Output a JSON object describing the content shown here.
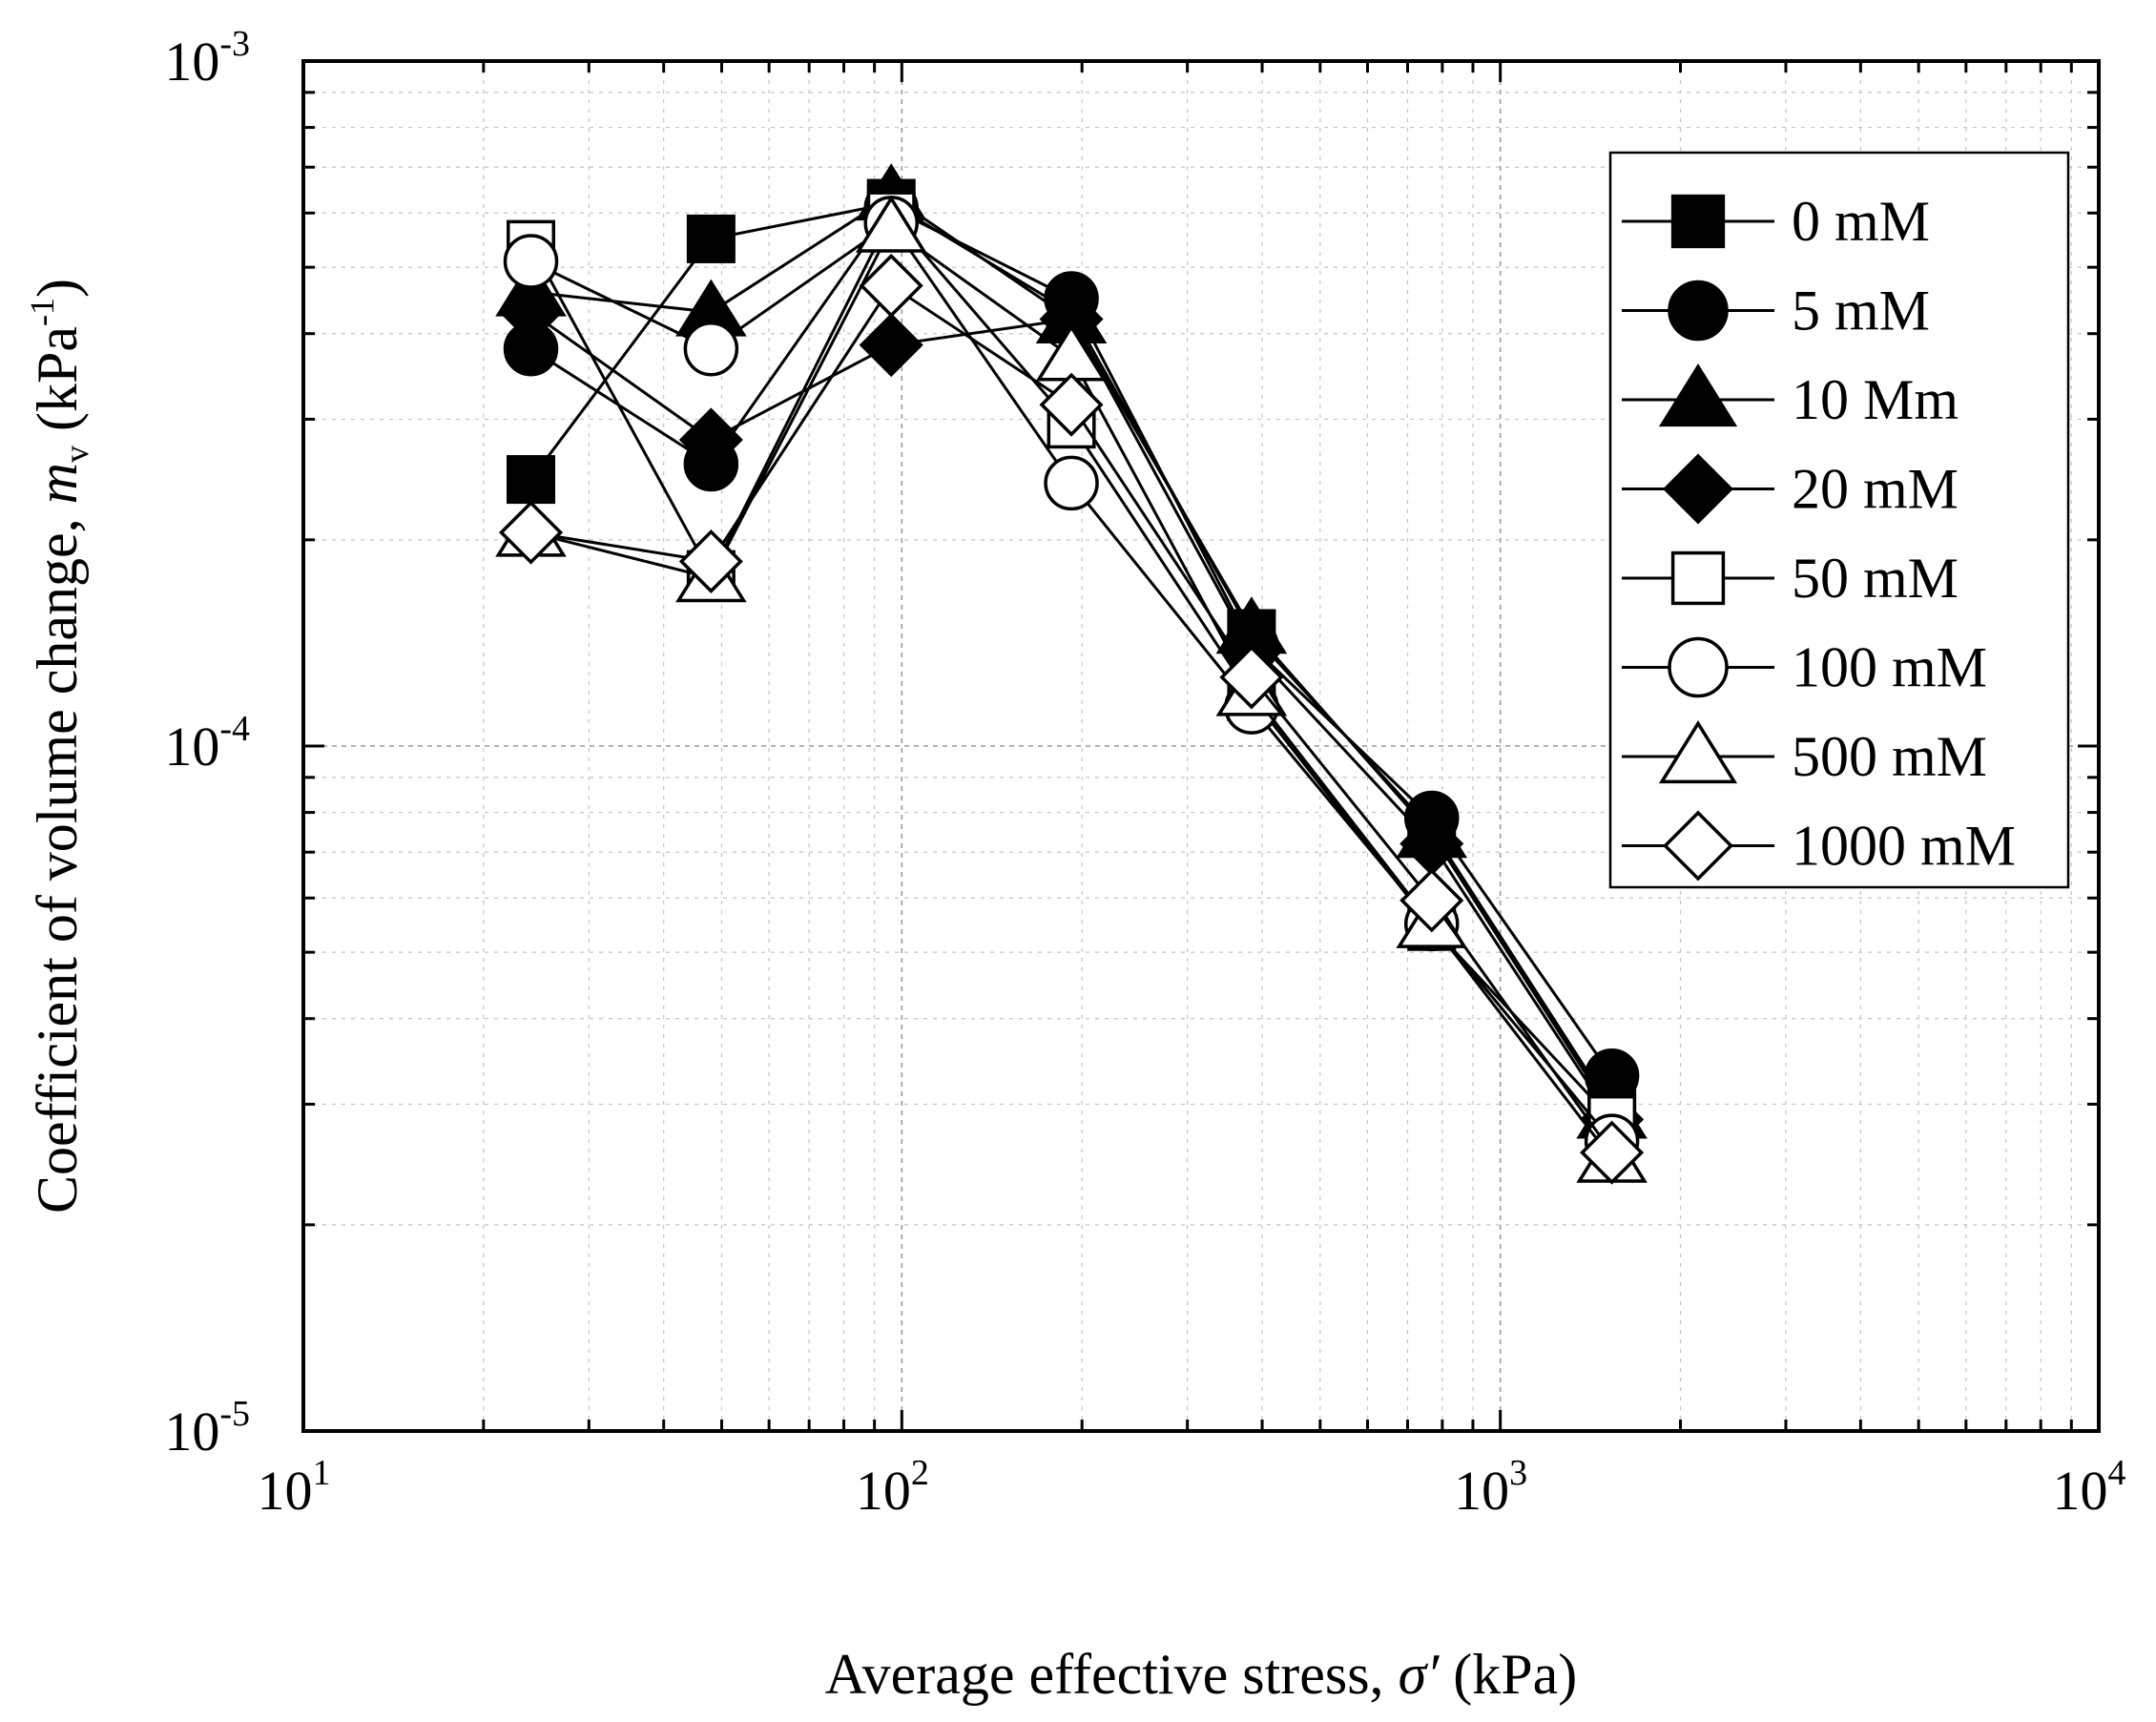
{
  "chart_data": {
    "type": "line",
    "xscale": "log",
    "yscale": "log",
    "xlim": [
      10,
      10000
    ],
    "ylim": [
      1e-05,
      0.001
    ],
    "xlabel": {
      "prefix": "Average effective stress, ",
      "symbol": "σ′",
      "suffix": " (kPa)"
    },
    "ylabel": {
      "prefix": "Coefficient of volume change, ",
      "symbol": "m",
      "subscript": "v",
      "unit_open": " (kPa",
      "unit_sup": "-1",
      "unit_close": ")"
    },
    "x_ticks": [
      {
        "base": "10",
        "exp": "1"
      },
      {
        "base": "10",
        "exp": "2"
      },
      {
        "base": "10",
        "exp": "3"
      },
      {
        "base": "10",
        "exp": "4"
      }
    ],
    "y_ticks": [
      {
        "base": "10",
        "exp": "-5"
      },
      {
        "base": "10",
        "exp": "-4"
      },
      {
        "base": "10",
        "exp": "-3"
      }
    ],
    "grid": true,
    "legend_position": "top-right",
    "x": [
      24,
      48,
      96,
      192,
      384,
      768,
      1536
    ],
    "series": [
      {
        "name": "0 mM",
        "marker": "square",
        "filled": true,
        "values": [
          0.000245,
          0.00055,
          0.00062,
          0.00043,
          0.000146,
          7.55e-05,
          2.95e-05
        ]
      },
      {
        "name": "5 mM",
        "marker": "circle",
        "filled": true,
        "values": [
          0.00038,
          0.000258,
          0.00061,
          0.00045,
          0.00014,
          7.85e-05,
          3.3e-05
        ]
      },
      {
        "name": "10 Mm",
        "marker": "triangle",
        "filled": true,
        "values": [
          0.00046,
          0.00043,
          0.000635,
          0.00042,
          0.000148,
          7.45e-05,
          2.9e-05
        ]
      },
      {
        "name": "20 mM",
        "marker": "diamond",
        "filled": true,
        "values": [
          0.00043,
          0.00028,
          0.000385,
          0.00042,
          0.000138,
          7.2e-05,
          2.85e-05
        ]
      },
      {
        "name": "50 mM",
        "marker": "square",
        "filled": false,
        "values": [
          0.00054,
          0.000178,
          0.000595,
          0.000295,
          0.000118,
          5.45e-05,
          2.85e-05
        ]
      },
      {
        "name": "100 mM",
        "marker": "circle",
        "filled": false,
        "values": [
          0.00051,
          0.00038,
          0.00058,
          0.000242,
          0.000114,
          5.5e-05,
          2.65e-05
        ]
      },
      {
        "name": "500 mM",
        "marker": "triangle",
        "filled": false,
        "values": [
          0.000205,
          0.000176,
          0.00057,
          0.00037,
          0.00012,
          5.5e-05,
          2.5e-05
        ]
      },
      {
        "name": "1000 mM",
        "marker": "diamond",
        "filled": false,
        "values": [
          0.000205,
          0.000186,
          0.00047,
          0.000315,
          0.000126,
          5.95e-05,
          2.55e-05
        ]
      }
    ]
  }
}
